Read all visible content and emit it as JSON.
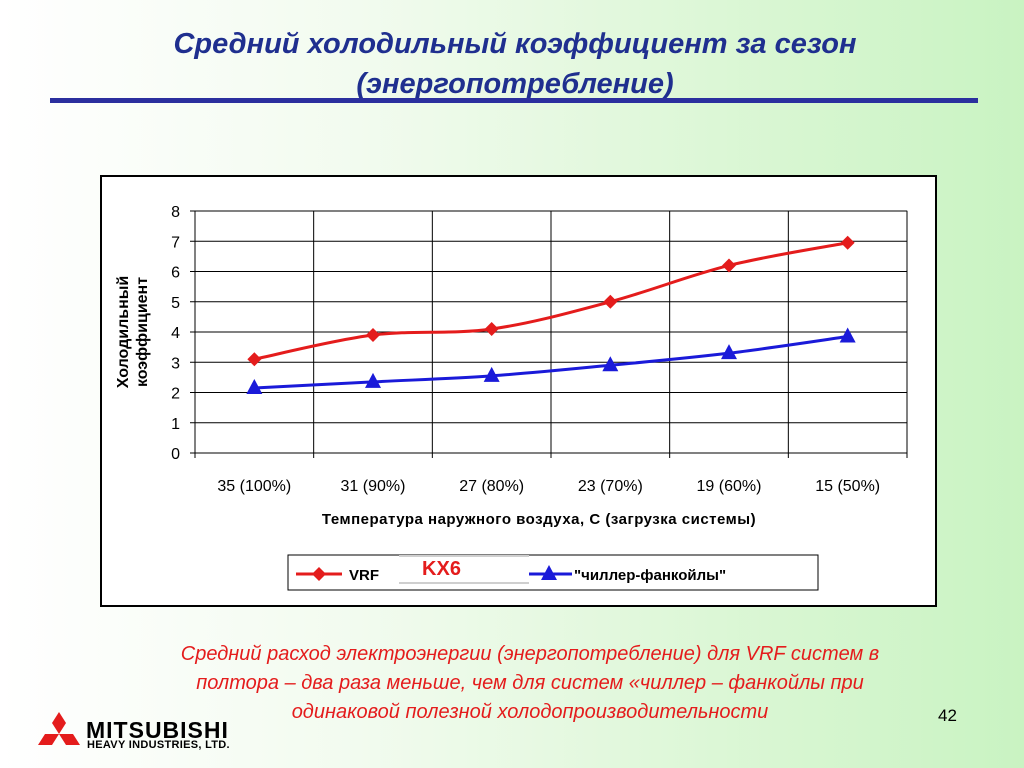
{
  "slide": {
    "title_line1": "Средний холодильный коэффициент за сезон",
    "title_line2": "(энергопотребление)",
    "caption_line1": "Средний расход электроэнергии (энергопотребление) для VRF систем в",
    "caption_line2": "полтора – два раза меньше, чем для систем «чиллер – фанкойлы при",
    "caption_line3": "одинаковой полезной холодопроизводительности",
    "page_number": "42",
    "kx6_label": "KX6",
    "colors": {
      "title": "#1f2f8f",
      "caption": "#e41c1c",
      "rule": "#2b2f9e"
    }
  },
  "logo": {
    "line1": "MITSUBISHI",
    "line2": "HEAVY INDUSTRIES, LTD.",
    "icon": "three-diamonds-logo-icon",
    "color": "#e41c1c"
  },
  "chart_data": {
    "type": "line",
    "categories": [
      "35 (100%)",
      "31 (90%)",
      "27 (80%)",
      "23 (70%)",
      "19 (60%)",
      "15 (50%)"
    ],
    "series": [
      {
        "name": "VRF",
        "values": [
          3.1,
          3.9,
          4.1,
          5.0,
          6.2,
          6.95
        ],
        "color": "#e41c1c",
        "marker": "diamond"
      },
      {
        "name": "\"чиллер-фанкойлы\"",
        "values": [
          2.15,
          2.35,
          2.55,
          2.9,
          3.3,
          3.85
        ],
        "color": "#1a1ad9",
        "marker": "triangle"
      }
    ],
    "xlabel": "Температура наружного воздуха, С (загрузка системы)",
    "ylabel_line1": "Холодильный",
    "ylabel_line2": "коэффициент",
    "yticks": [
      "0",
      "1",
      "2",
      "3",
      "4",
      "5",
      "6",
      "7",
      "8"
    ],
    "ylim": [
      0,
      8
    ],
    "grid": true,
    "legend_position": "bottom"
  }
}
